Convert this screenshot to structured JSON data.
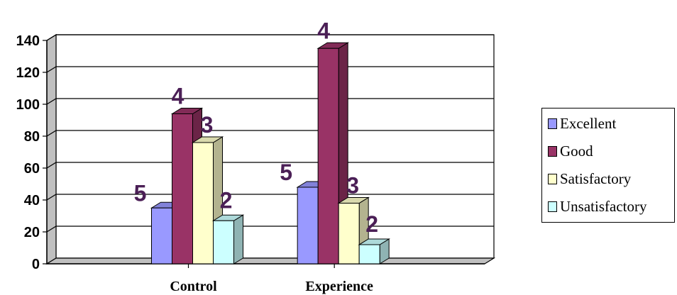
{
  "chart_data": {
    "type": "bar",
    "title": "",
    "xlabel": "",
    "ylabel": "",
    "ylim": [
      0,
      140
    ],
    "yticks": [
      "0",
      "20",
      "40",
      "60",
      "80",
      "100",
      "120",
      "140"
    ],
    "grid": true,
    "legend_position": "right",
    "categories": [
      "Control",
      "Experience"
    ],
    "series": [
      {
        "name": "Excellent",
        "color": "#9999ff",
        "values": [
          35,
          48
        ],
        "labels": [
          "5",
          "5"
        ]
      },
      {
        "name": "Good",
        "color": "#993366",
        "values": [
          94,
          135
        ],
        "labels": [
          "4",
          "4"
        ]
      },
      {
        "name": "Satisfactory",
        "color": "#ffffcc",
        "values": [
          76,
          38
        ],
        "labels": [
          "3",
          "3"
        ]
      },
      {
        "name": "Unsatisfactory",
        "color": "#ccffff",
        "values": [
          27,
          12
        ],
        "labels": [
          "2",
          "2"
        ]
      }
    ]
  }
}
